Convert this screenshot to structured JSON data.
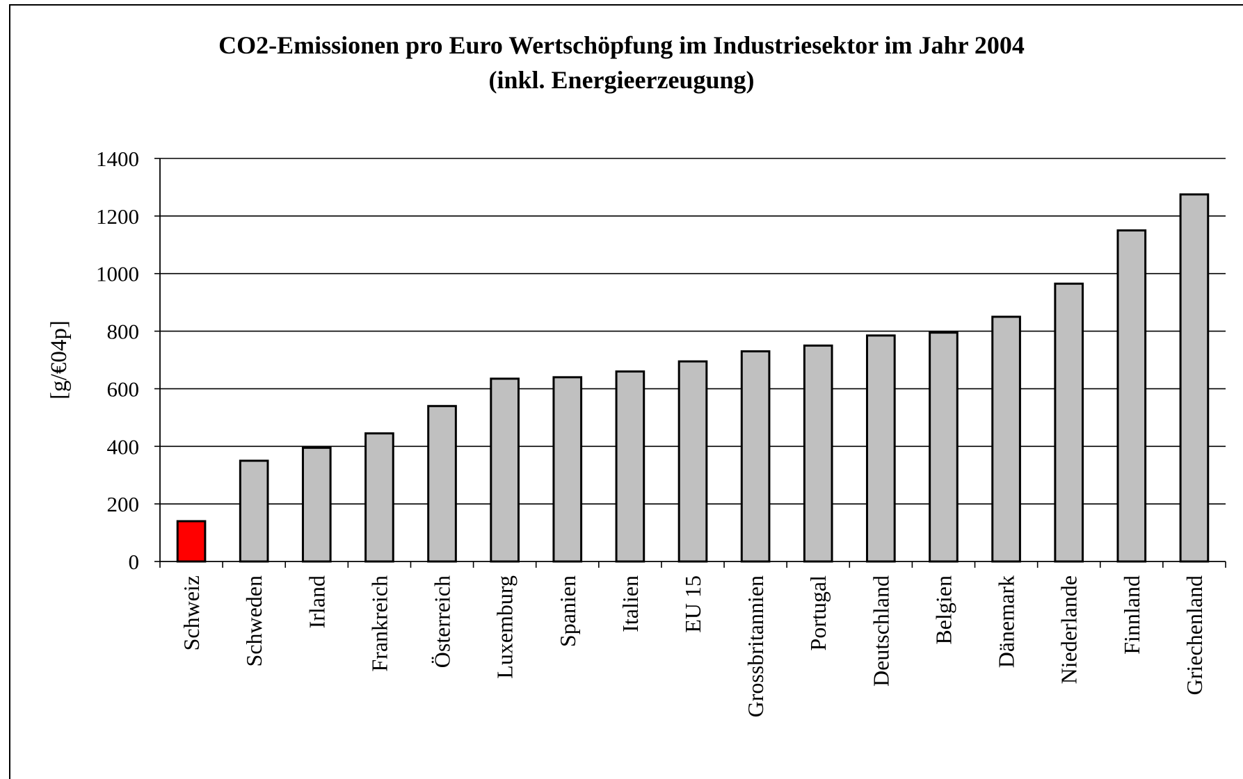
{
  "chart_data": {
    "type": "bar",
    "title": "CO2-Emissionen pro Euro Wertschöpfung im Industriesektor im Jahr 2004",
    "subtitle": "(inkl. Energieerzeugung)",
    "xlabel": "",
    "ylabel": "[g/€04p]",
    "ylim": [
      0,
      1400
    ],
    "yticks": [
      0,
      200,
      400,
      600,
      800,
      1000,
      1200,
      1400
    ],
    "grid": true,
    "categories": [
      "Schweiz",
      "Schweden",
      "Irland",
      "Frankreich",
      "Österreich",
      "Luxemburg",
      "Spanien",
      "Italien",
      "EU 15",
      "Grossbritannien",
      "Portugal",
      "Deutschland",
      "Belgien",
      "Dänemark",
      "Niederlande",
      "Finnland",
      "Griechenland"
    ],
    "values": [
      140,
      350,
      395,
      445,
      540,
      635,
      640,
      660,
      695,
      730,
      750,
      785,
      795,
      850,
      965,
      1150,
      1275
    ],
    "colors": {
      "highlight": "#ff0000",
      "default": "#c0c0c0",
      "outline": "#000000"
    },
    "highlight_index": 0
  }
}
